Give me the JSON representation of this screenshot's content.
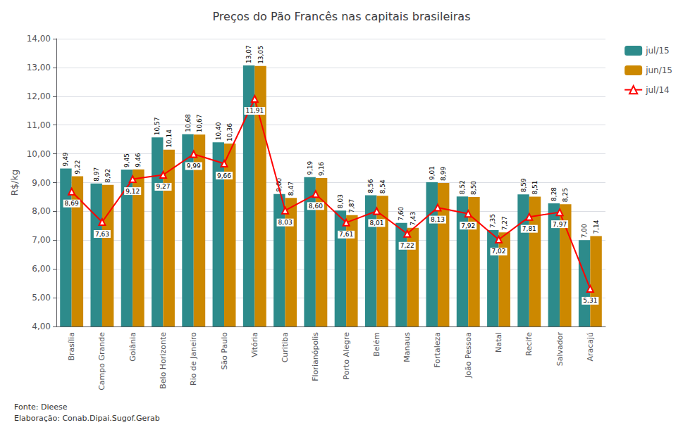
{
  "chart_data": {
    "type": "bar",
    "title": "Preços do Pão Francês nas capitais brasileiras",
    "ylabel": "R$/kg",
    "annotations": [
      "Fonte: Dieese",
      "Elaboração: Conab.Dipai.Sugof.Gerab"
    ],
    "categories": [
      "Brasília",
      "Campo Grande",
      "Goiânia",
      "Belo Horizonte",
      "Rio de Janeiro",
      "São Paulo",
      "Vitória",
      "Curitiba",
      "Florianópolis",
      "Porto Alegre",
      "Belém",
      "Manaus",
      "Fortaleza",
      "João Pessoa",
      "Natal",
      "Recife",
      "Salvador",
      "Aracajú"
    ],
    "series": [
      {
        "name": "jul/15",
        "type": "bar",
        "color": "#2d8b8b",
        "values": [
          9.49,
          8.97,
          9.45,
          10.57,
          10.68,
          10.4,
          13.07,
          8.6,
          9.19,
          8.03,
          8.56,
          7.6,
          9.01,
          8.52,
          7.35,
          8.59,
          8.28,
          7.0
        ],
        "value_labels": [
          "9,49",
          "8,97",
          "9,45",
          "10,57",
          "10,68",
          "10,40",
          "13,07",
          "8,60",
          "9,19",
          "8,03",
          "8,56",
          "7,60",
          "9,01",
          "8,52",
          "7,35",
          "8,59",
          "8,28",
          "7,00"
        ]
      },
      {
        "name": "jun/15",
        "type": "bar",
        "color": "#cc8800",
        "values": [
          9.22,
          8.92,
          9.46,
          10.14,
          10.67,
          10.36,
          13.05,
          8.47,
          9.16,
          7.87,
          8.54,
          7.43,
          8.99,
          8.5,
          7.27,
          8.51,
          8.25,
          7.14
        ],
        "value_labels": [
          "9,22",
          "8,92",
          "9,46",
          "10,14",
          "10,67",
          "10,36",
          "13,05",
          "8,47",
          "9,16",
          "7,87",
          "8,54",
          "7,43",
          "8,99",
          "8,50",
          "7,27",
          "8,51",
          "8,25",
          "7,14"
        ]
      },
      {
        "name": "jul/14",
        "type": "line",
        "color": "#ff0000",
        "marker": "triangle",
        "values": [
          8.69,
          7.63,
          9.12,
          9.27,
          9.99,
          9.66,
          11.91,
          8.03,
          8.6,
          7.61,
          8.01,
          7.22,
          8.13,
          7.92,
          7.02,
          7.81,
          7.97,
          5.31
        ],
        "value_labels": [
          "8,69",
          "7,63",
          "9,12",
          "9,27",
          "9,99",
          "9,66",
          "11,91",
          "8,03",
          "8,60",
          "7,61",
          "8,01",
          "7,22",
          "8,13",
          "7,92",
          "7,02",
          "7,81",
          "7,97",
          "5,31"
        ]
      }
    ],
    "ylim": [
      4.0,
      14.0
    ],
    "yticks": [
      {
        "value": 4.0,
        "label": "4,00"
      },
      {
        "value": 5.0,
        "label": "5,00"
      },
      {
        "value": 6.0,
        "label": "6,00"
      },
      {
        "value": 7.0,
        "label": "7,00"
      },
      {
        "value": 8.0,
        "label": "8,00"
      },
      {
        "value": 9.0,
        "label": "9,00"
      },
      {
        "value": 10.0,
        "label": "10,00"
      },
      {
        "value": 11.0,
        "label": "11,00"
      },
      {
        "value": 12.0,
        "label": "12,00"
      },
      {
        "value": 13.0,
        "label": "13,00"
      },
      {
        "value": 14.0,
        "label": "14,00"
      }
    ],
    "grid": true,
    "legend": "upper right",
    "data_labels": true
  }
}
